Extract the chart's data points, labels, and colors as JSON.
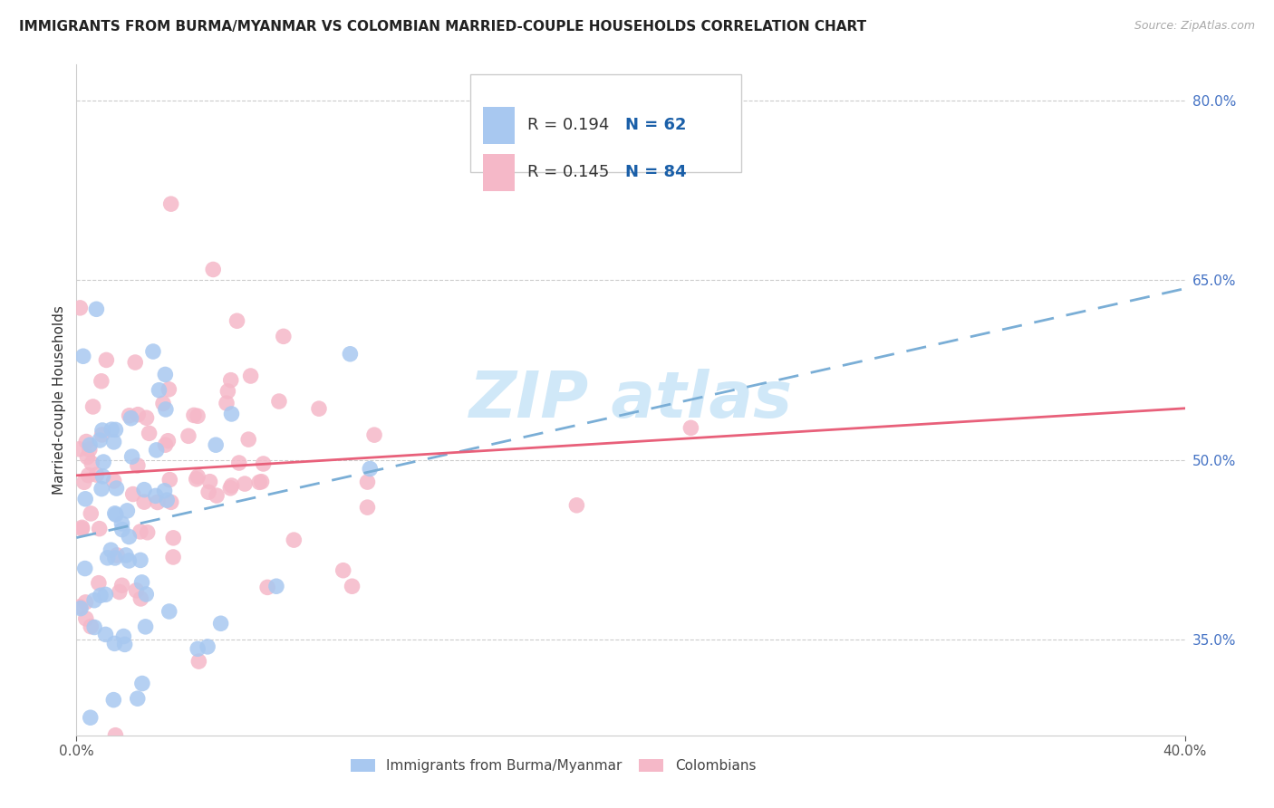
{
  "title": "IMMIGRANTS FROM BURMA/MYANMAR VS COLOMBIAN MARRIED-COUPLE HOUSEHOLDS CORRELATION CHART",
  "source": "Source: ZipAtlas.com",
  "ylabel": "Married-couple Households",
  "yticks": [
    "80.0%",
    "65.0%",
    "50.0%",
    "35.0%"
  ],
  "ytick_vals": [
    0.8,
    0.65,
    0.5,
    0.35
  ],
  "xlim": [
    0.0,
    0.4
  ],
  "ylim": [
    0.27,
    0.83
  ],
  "xtick_left": "0.0%",
  "xtick_right": "40.0%",
  "legend1_r": "R = 0.194",
  "legend1_n": "N = 62",
  "legend2_r": "R = 0.145",
  "legend2_n": "N = 84",
  "blue_color": "#a8c8f0",
  "pink_color": "#f5b8c8",
  "line_blue_color": "#7aaed6",
  "line_pink_color": "#e8607a",
  "ytick_color": "#4472c4",
  "r_text_color": "#333333",
  "n_text_color": "#1a5fa8",
  "watermark_color": "#d0e8f8",
  "legend_border_color": "#cccccc",
  "grid_color": "#cccccc",
  "spine_color": "#cccccc",
  "title_color": "#222222",
  "source_color": "#aaaaaa",
  "legend_label_color": "#444444",
  "blue_line_intercept": 0.435,
  "blue_line_slope": 0.52,
  "pink_line_intercept": 0.487,
  "pink_line_slope": 0.14
}
